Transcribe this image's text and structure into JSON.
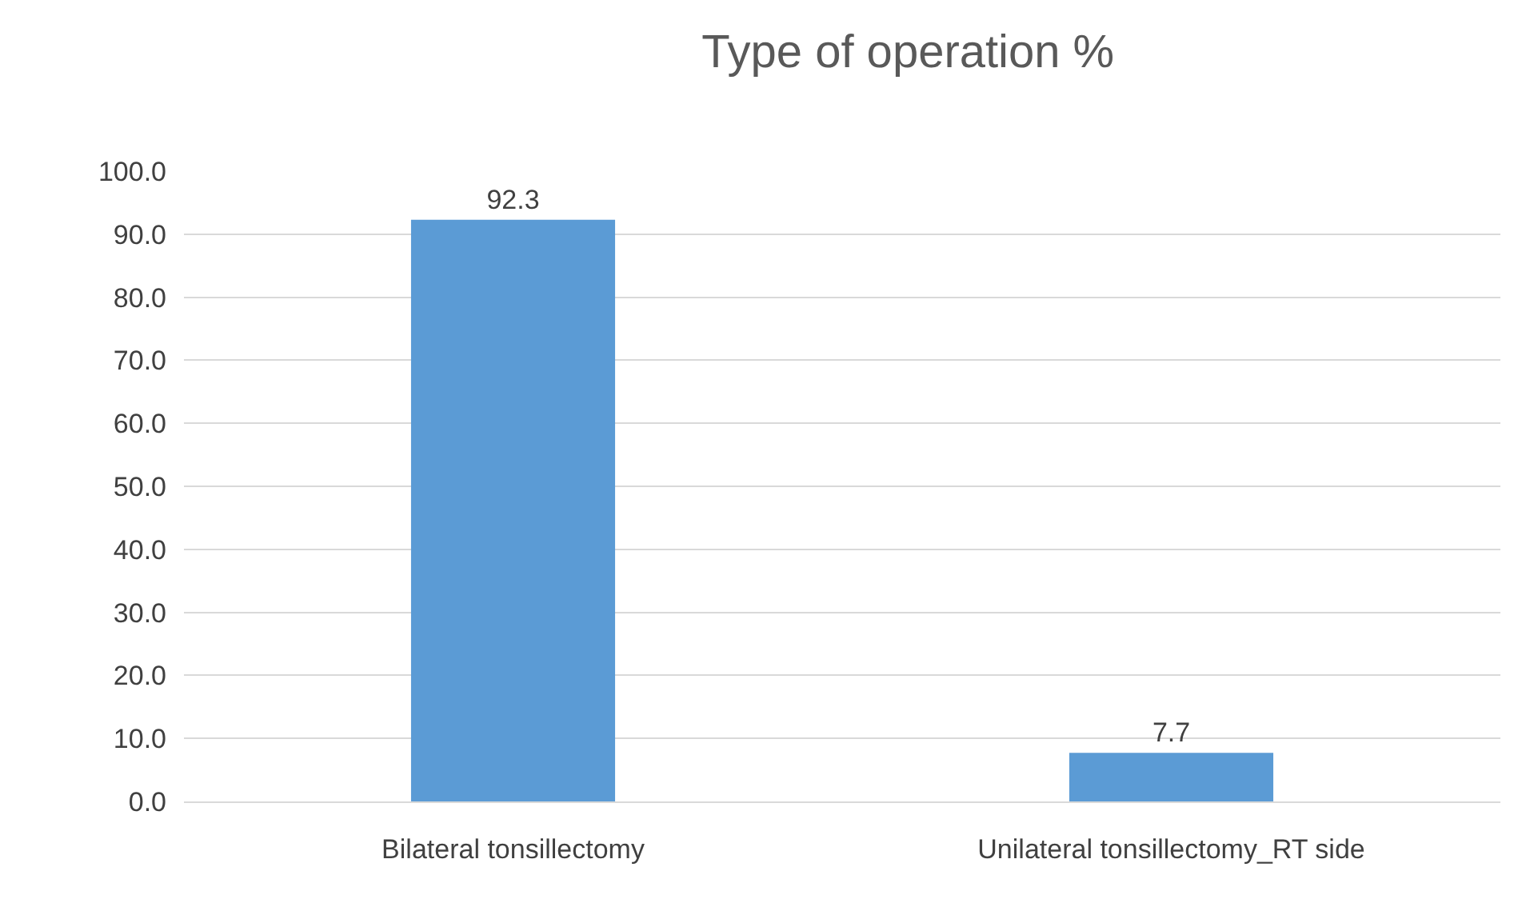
{
  "chart_data": {
    "type": "bar",
    "title": "Type of operation %",
    "categories": [
      "Bilateral tonsillectomy",
      "Unilateral tonsillectomy_RT side"
    ],
    "values": [
      92.3,
      7.7
    ],
    "color": "#5b9bd5",
    "ylim": [
      0,
      100
    ],
    "yticks": [
      {
        "value": 0,
        "label": "0.0"
      },
      {
        "value": 10,
        "label": "10.0"
      },
      {
        "value": 20,
        "label": "20.0"
      },
      {
        "value": 30,
        "label": "30.0"
      },
      {
        "value": 40,
        "label": "40.0"
      },
      {
        "value": 50,
        "label": "50.0"
      },
      {
        "value": 60,
        "label": "60.0"
      },
      {
        "value": 70,
        "label": "70.0"
      },
      {
        "value": 80,
        "label": "80.0"
      },
      {
        "value": 90,
        "label": "90.0"
      },
      {
        "value": 100,
        "label": "100.0"
      }
    ],
    "grid": "y",
    "data_labels": true,
    "legend": false
  }
}
